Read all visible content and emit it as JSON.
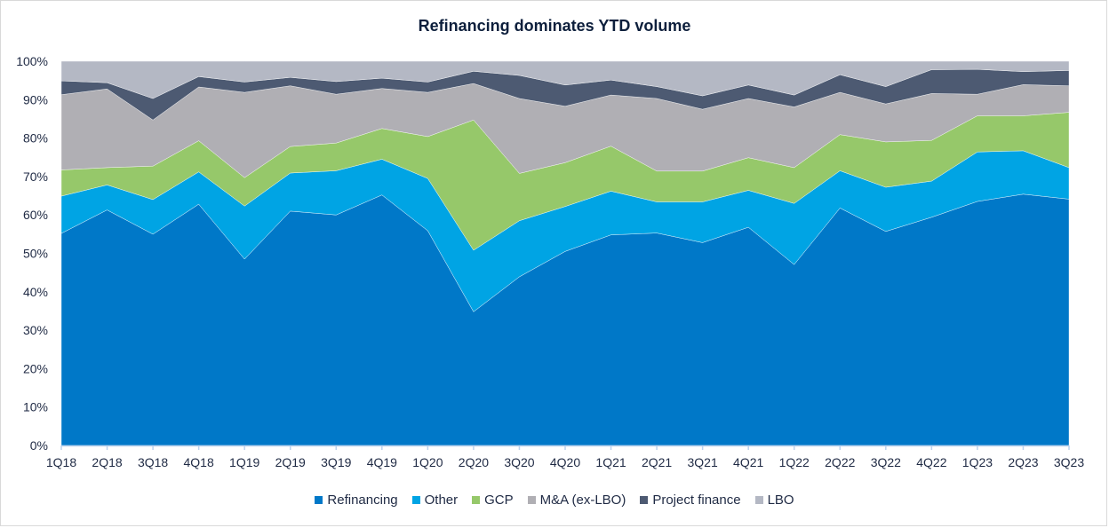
{
  "chart_data": {
    "type": "area",
    "stacked": true,
    "title": "Refinancing dominates YTD volume",
    "xlabel": "",
    "ylabel": "",
    "ylim": [
      0,
      100
    ],
    "y_ticks": [
      "0%",
      "10%",
      "20%",
      "30%",
      "40%",
      "50%",
      "60%",
      "70%",
      "80%",
      "90%",
      "100%"
    ],
    "grid": false,
    "legend_position": "bottom",
    "categories": [
      "1Q18",
      "2Q18",
      "3Q18",
      "4Q18",
      "1Q19",
      "2Q19",
      "3Q19",
      "4Q19",
      "1Q20",
      "2Q20",
      "3Q20",
      "4Q20",
      "1Q21",
      "2Q21",
      "3Q21",
      "4Q21",
      "1Q22",
      "2Q22",
      "3Q22",
      "4Q22",
      "1Q23",
      "2Q23",
      "3Q23"
    ],
    "series": [
      {
        "name": "Refinancing",
        "color": "#0078c8",
        "values": [
          55.2,
          61.3,
          55.0,
          62.8,
          48.5,
          61.0,
          60.0,
          65.2,
          55.9,
          34.8,
          43.9,
          50.5,
          54.8,
          55.3,
          52.8,
          56.8,
          47.1,
          61.8,
          55.7,
          59.4,
          63.5,
          65.4,
          64.1
        ]
      },
      {
        "name": "Other",
        "color": "#00a4e4",
        "values": [
          9.7,
          6.5,
          9.0,
          8.4,
          13.8,
          9.9,
          11.5,
          9.3,
          13.6,
          16.0,
          14.6,
          11.7,
          11.4,
          8.1,
          10.6,
          9.6,
          15.9,
          9.7,
          11.5,
          9.4,
          12.9,
          11.3,
          8.2
        ]
      },
      {
        "name": "GCP",
        "color": "#96c86a",
        "values": [
          6.8,
          4.5,
          8.7,
          8.1,
          7.4,
          6.9,
          7.2,
          8.0,
          10.9,
          33.9,
          12.3,
          11.4,
          11.7,
          8.0,
          8.0,
          8.5,
          9.3,
          9.4,
          11.8,
          10.6,
          9.4,
          9.1,
          14.4
        ]
      },
      {
        "name": "M&A (ex-LBO)",
        "color": "#b0afb4",
        "values": [
          19.6,
          20.5,
          12.0,
          14.0,
          22.2,
          15.8,
          12.7,
          10.4,
          11.5,
          9.5,
          19.5,
          14.7,
          13.3,
          18.9,
          16.1,
          15.4,
          15.8,
          11.0,
          9.9,
          12.2,
          5.6,
          8.1,
          6.9
        ]
      },
      {
        "name": "Project finance",
        "color": "#4d5a72",
        "values": [
          3.6,
          1.6,
          5.6,
          2.7,
          2.7,
          2.2,
          3.3,
          2.7,
          2.7,
          3.2,
          6.0,
          5.5,
          3.9,
          3.1,
          3.5,
          3.5,
          3.1,
          4.6,
          4.5,
          6.2,
          6.5,
          3.4,
          4.0
        ]
      },
      {
        "name": "LBO",
        "color": "#b4b8c4",
        "values": [
          5.1,
          5.6,
          9.7,
          4.0,
          5.4,
          4.2,
          5.3,
          4.4,
          5.4,
          2.6,
          3.7,
          6.2,
          4.9,
          6.6,
          9.0,
          6.2,
          8.8,
          3.5,
          6.6,
          2.2,
          2.1,
          2.7,
          2.4
        ]
      }
    ]
  }
}
